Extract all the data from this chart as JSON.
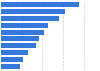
{
  "values": [
    760000,
    620000,
    560000,
    460000,
    420000,
    370000,
    340000,
    265000,
    215000,
    180000
  ],
  "bar_color": "#3579dc",
  "background_color": "#ffffff",
  "grid_color": "#cccccc",
  "grid_style": "--",
  "xlim_max": 950000,
  "xticks": [
    0,
    200000,
    400000,
    600000,
    800000
  ],
  "figsize": [
    1.0,
    0.71
  ],
  "dpi": 100,
  "bar_height": 0.72
}
